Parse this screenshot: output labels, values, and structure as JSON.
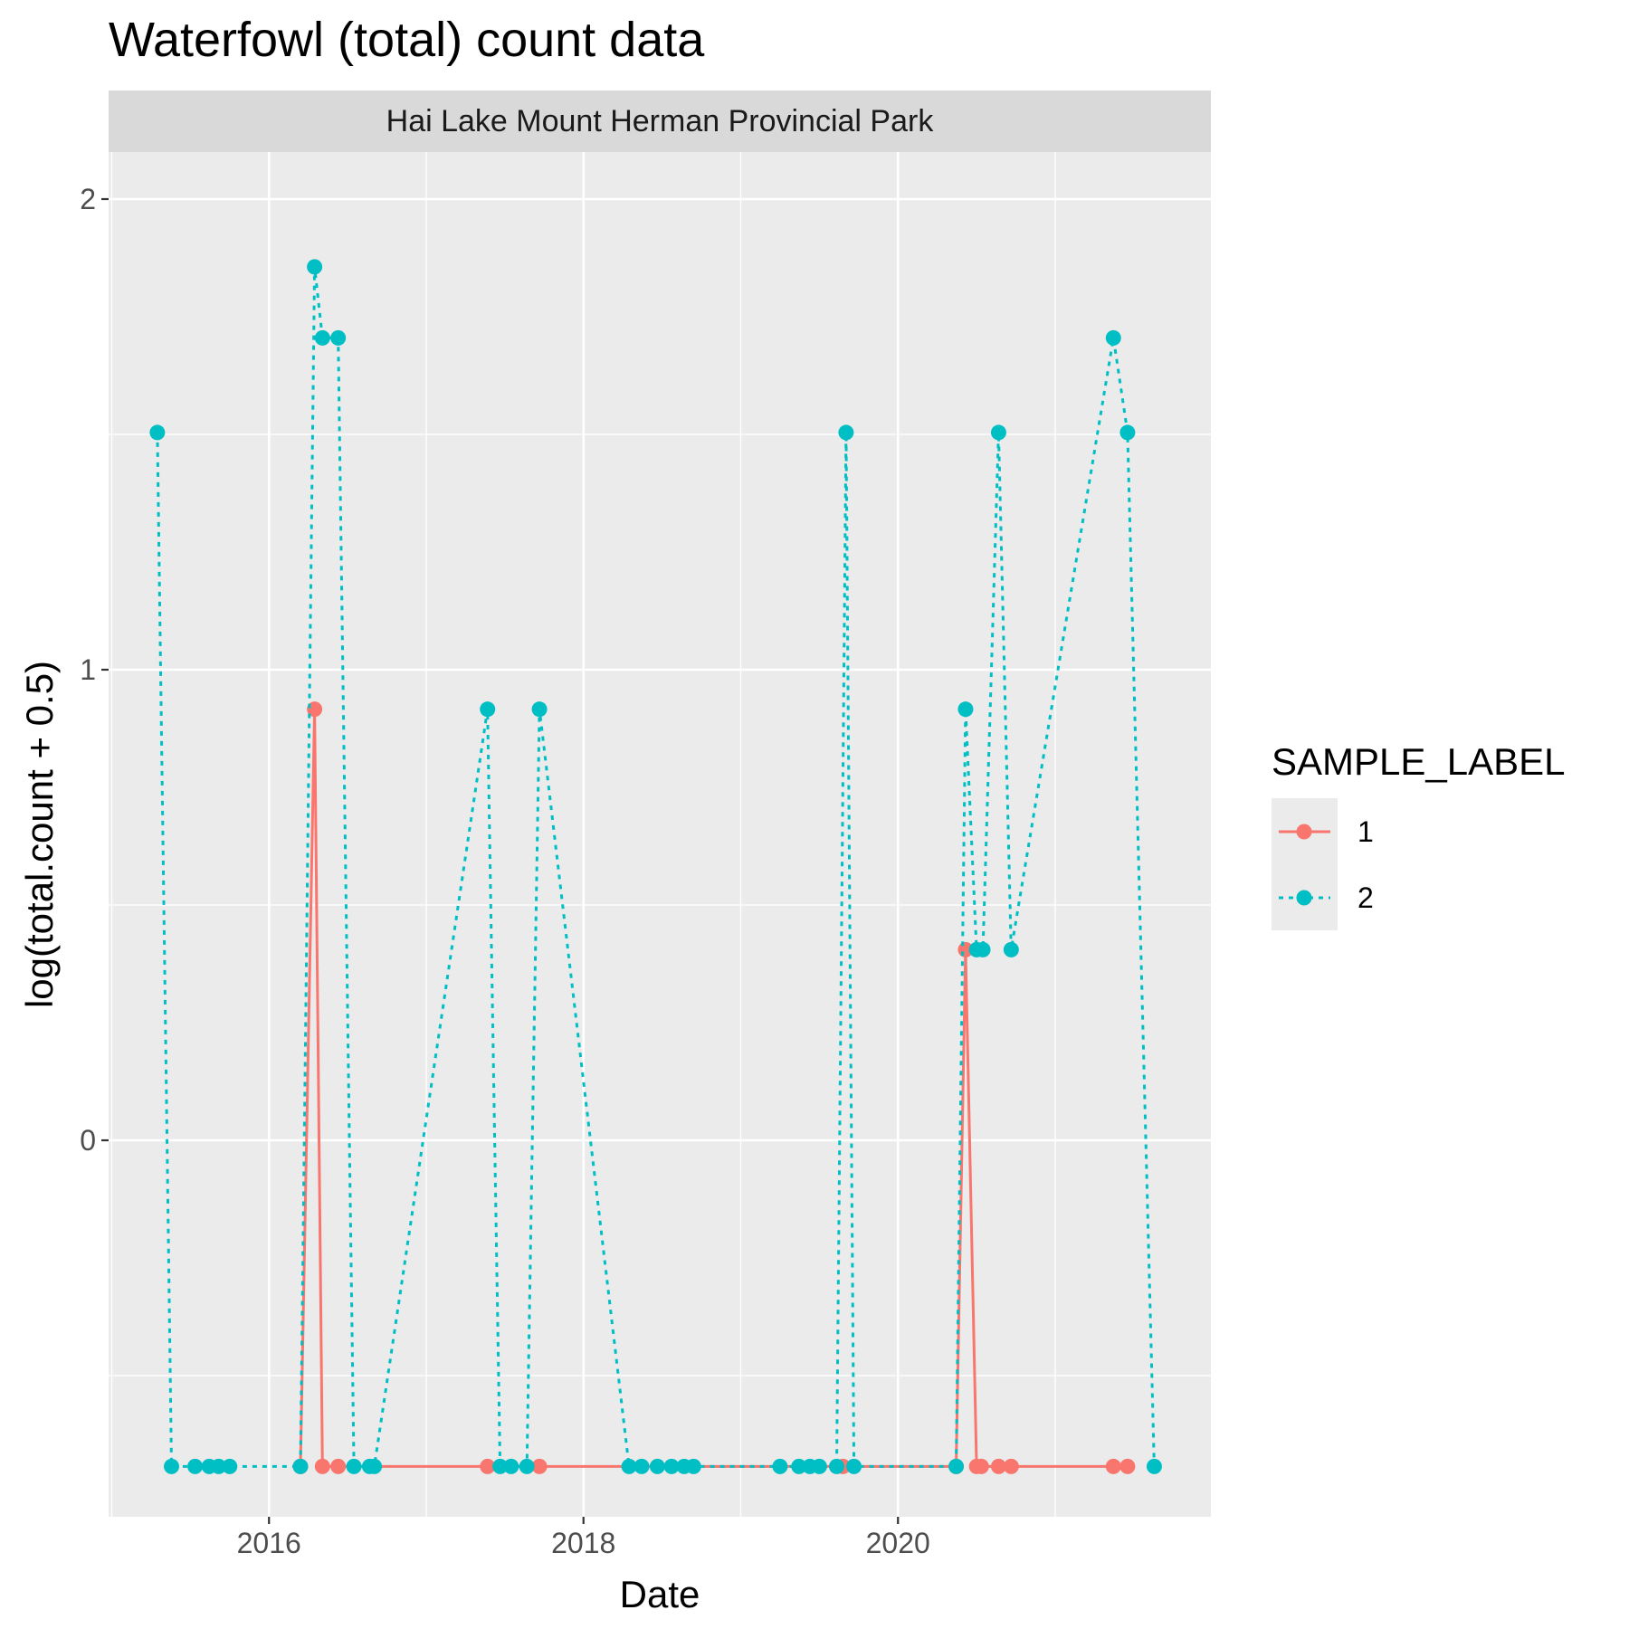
{
  "chart_data": {
    "type": "line",
    "title": "Waterfowl (total) count data",
    "facet_label": "Hai Lake Mount Herman Provincial Park",
    "xlabel": "Date",
    "ylabel": "log(total.count + 0.5)",
    "x_ticks": [
      "2016",
      "2018",
      "2020"
    ],
    "y_ticks": [
      "0",
      "1",
      "2"
    ],
    "xlim": [
      2014.98,
      2021.99
    ],
    "ylim": [
      -0.8,
      2.1
    ],
    "grid": true,
    "legend": {
      "title": "SAMPLE_LABEL",
      "placement": "right",
      "entries": [
        "1",
        "2"
      ]
    },
    "series": [
      {
        "name": "1",
        "color": "#F8766D",
        "line_style": "solid",
        "points": [
          [
            2016.2,
            -0.693
          ],
          [
            2016.29,
            0.916
          ],
          [
            2016.34,
            -0.693
          ],
          [
            2016.44,
            -0.693
          ],
          [
            2017.39,
            -0.693
          ],
          [
            2017.72,
            -0.693
          ],
          [
            2019.65,
            -0.693
          ],
          [
            2020.37,
            -0.693
          ],
          [
            2020.43,
            0.405
          ],
          [
            2020.5,
            -0.693
          ],
          [
            2020.53,
            -0.693
          ],
          [
            2020.64,
            -0.693
          ],
          [
            2020.72,
            -0.693
          ],
          [
            2021.37,
            -0.693
          ],
          [
            2021.46,
            -0.693
          ]
        ]
      },
      {
        "name": "2",
        "color": "#00BFC4",
        "line_style": "dotted",
        "points": [
          [
            2015.29,
            1.504
          ],
          [
            2015.38,
            -0.693
          ],
          [
            2015.53,
            -0.693
          ],
          [
            2015.62,
            -0.693
          ],
          [
            2015.68,
            -0.693
          ],
          [
            2015.75,
            -0.693
          ],
          [
            2016.2,
            -0.693
          ],
          [
            2016.29,
            1.856
          ],
          [
            2016.34,
            1.705
          ],
          [
            2016.44,
            1.705
          ],
          [
            2016.54,
            -0.693
          ],
          [
            2016.64,
            -0.693
          ],
          [
            2016.67,
            -0.693
          ],
          [
            2017.39,
            0.916
          ],
          [
            2017.47,
            -0.693
          ],
          [
            2017.54,
            -0.693
          ],
          [
            2017.64,
            -0.693
          ],
          [
            2017.72,
            0.916
          ],
          [
            2018.29,
            -0.693
          ],
          [
            2018.37,
            -0.693
          ],
          [
            2018.47,
            -0.693
          ],
          [
            2018.56,
            -0.693
          ],
          [
            2018.64,
            -0.693
          ],
          [
            2018.7,
            -0.693
          ],
          [
            2019.25,
            -0.693
          ],
          [
            2019.37,
            -0.693
          ],
          [
            2019.44,
            -0.693
          ],
          [
            2019.5,
            -0.693
          ],
          [
            2019.61,
            -0.693
          ],
          [
            2019.67,
            1.504
          ],
          [
            2019.72,
            -0.693
          ],
          [
            2020.37,
            -0.693
          ],
          [
            2020.43,
            0.916
          ],
          [
            2020.5,
            0.405
          ],
          [
            2020.54,
            0.405
          ],
          [
            2020.64,
            1.504
          ],
          [
            2020.72,
            0.405
          ],
          [
            2021.37,
            1.705
          ],
          [
            2021.46,
            1.504
          ],
          [
            2021.63,
            -0.693
          ]
        ]
      }
    ]
  }
}
